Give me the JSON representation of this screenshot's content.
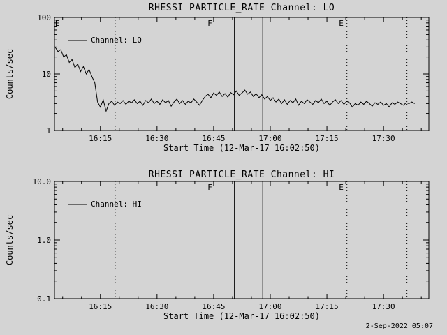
{
  "page": {
    "timestamp": "2-Sep-2022 05:07"
  },
  "colors": {
    "background": "#d4d4d4",
    "foreground": "#000000"
  },
  "chart_data": [
    {
      "type": "line",
      "title": "RHESSI PARTICLE_RATE Channel: LO",
      "xlabel": "Start Time (12-Mar-17 16:02:50)",
      "ylabel": "Counts/sec",
      "yscale": "log",
      "ylim": [
        1,
        100
      ],
      "ytick_values": [
        1,
        10,
        100
      ],
      "ytick_labels": [
        "1",
        "10",
        "100"
      ],
      "xlim_minutes": [
        2.833,
        102
      ],
      "xtick_minor_minutes": 5,
      "xticks": [
        {
          "t": 15,
          "label": "16:15"
        },
        {
          "t": 30,
          "label": "16:30"
        },
        {
          "t": 45,
          "label": "16:45"
        },
        {
          "t": 60,
          "label": "17:00"
        },
        {
          "t": 75,
          "label": "17:15"
        },
        {
          "t": 90,
          "label": "17:30"
        }
      ],
      "legend": {
        "label": "Channel: LO"
      },
      "events": {
        "dotted_lines": [
          18.9,
          80.3,
          96.2
        ],
        "solid_lines": [
          50.5,
          58
        ],
        "letters": [
          {
            "t": 3.6,
            "char": "E"
          },
          {
            "t": 44,
            "char": "F"
          },
          {
            "t": 78.8,
            "char": "E"
          }
        ]
      },
      "series": [
        {
          "name": "Channel: LO",
          "t_start": 3.0,
          "t_step": 0.75,
          "values": [
            30,
            25,
            27,
            20,
            22,
            16,
            18,
            13,
            15,
            11,
            13.5,
            10,
            12,
            9,
            7,
            3.2,
            2.6,
            3.5,
            2.2,
            3.0,
            3.3,
            2.8,
            3.2,
            3.0,
            3.4,
            2.9,
            3.3,
            3.1,
            3.5,
            3.0,
            3.3,
            2.8,
            3.4,
            3.1,
            3.6,
            3.0,
            3.3,
            2.9,
            3.5,
            3.1,
            3.4,
            2.7,
            3.2,
            3.6,
            3.0,
            3.4,
            2.9,
            3.3,
            3.1,
            3.6,
            3.2,
            2.8,
            3.4,
            4.0,
            4.4,
            3.8,
            4.6,
            4.2,
            4.8,
            4.0,
            4.5,
            3.9,
            4.7,
            4.3,
            5.0,
            4.2,
            4.6,
            5.2,
            4.4,
            4.8,
            4.0,
            4.5,
            3.8,
            4.3,
            3.6,
            4.0,
            3.4,
            3.8,
            3.2,
            3.6,
            3.0,
            3.5,
            2.9,
            3.4,
            3.1,
            3.6,
            2.8,
            3.3,
            3.0,
            3.5,
            3.2,
            2.9,
            3.4,
            3.1,
            3.6,
            3.0,
            3.3,
            2.8,
            3.2,
            3.5,
            3.0,
            3.4,
            2.9,
            3.3,
            3.1,
            2.6,
            3.0,
            2.8,
            3.2,
            2.9,
            3.3,
            3.0,
            2.7,
            3.1,
            2.9,
            3.2,
            2.8,
            3.0,
            2.6,
            3.1,
            2.9,
            3.2,
            3.0,
            2.8,
            3.1,
            3.0,
            3.2,
            3.0
          ]
        }
      ]
    },
    {
      "type": "line",
      "title": "RHESSI PARTICLE_RATE Channel: HI",
      "xlabel": "Start Time (12-Mar-17 16:02:50)",
      "ylabel": "Counts/sec",
      "yscale": "log",
      "ylim": [
        0.1,
        10
      ],
      "ytick_values": [
        0.1,
        1,
        10
      ],
      "ytick_labels": [
        "0.1",
        "1.0",
        "10.0"
      ],
      "xlim_minutes": [
        2.833,
        102
      ],
      "xtick_minor_minutes": 5,
      "xticks": [
        {
          "t": 15,
          "label": "16:15"
        },
        {
          "t": 30,
          "label": "16:30"
        },
        {
          "t": 45,
          "label": "16:45"
        },
        {
          "t": 60,
          "label": "17:00"
        },
        {
          "t": 75,
          "label": "17:15"
        },
        {
          "t": 90,
          "label": "17:30"
        }
      ],
      "legend": {
        "label": "Channel: HI"
      },
      "events": {
        "dotted_lines": [
          18.9,
          80.3,
          96.2
        ],
        "solid_lines": [
          50.5,
          58
        ],
        "letters": [
          {
            "t": 44,
            "char": "F"
          },
          {
            "t": 78.8,
            "char": "E"
          }
        ]
      },
      "series": [
        {
          "name": "Channel: HI",
          "t_start": 3.0,
          "t_step": 0.75,
          "values": []
        }
      ]
    }
  ]
}
